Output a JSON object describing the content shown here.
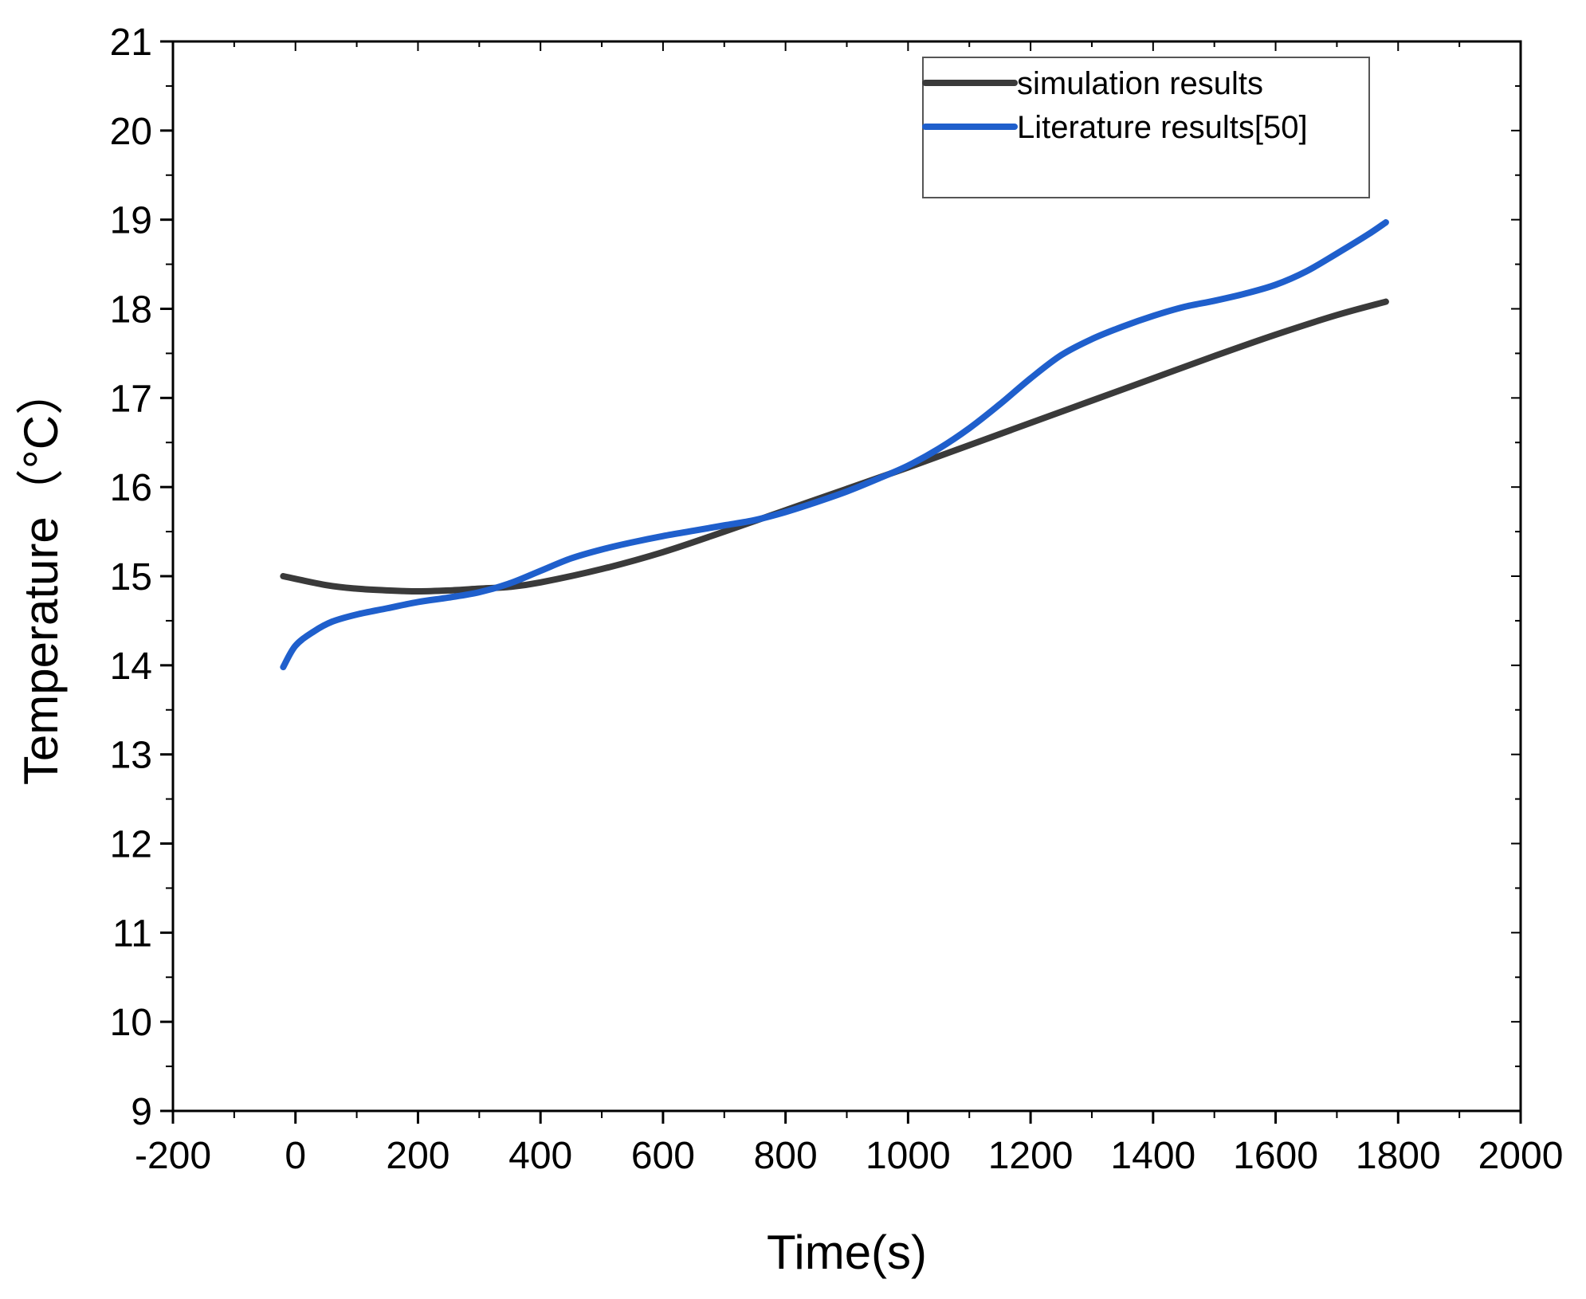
{
  "chart_data": {
    "type": "line",
    "title": "",
    "xlabel": "Time(s)",
    "ylabel": "Temperature（°C）",
    "xlim": [
      -200,
      2000
    ],
    "ylim": [
      9,
      21
    ],
    "xticks": [
      -200,
      0,
      200,
      400,
      600,
      800,
      1000,
      1200,
      1400,
      1600,
      1800,
      2000
    ],
    "yticks": [
      9,
      10,
      11,
      12,
      13,
      14,
      15,
      16,
      17,
      18,
      19,
      20,
      21
    ],
    "xtick_labels": [
      "-200",
      "0",
      "200",
      "400",
      "600",
      "800",
      "1000",
      "1200",
      "1400",
      "1600",
      "1800",
      "2000"
    ],
    "ytick_labels": [
      "9",
      "10",
      "11",
      "12",
      "13",
      "14",
      "15",
      "16",
      "17",
      "18",
      "19",
      "20",
      "21"
    ],
    "grid": false,
    "legend_position": "top-right",
    "series": [
      {
        "name": "simulation results",
        "color": "#3a3a3a",
        "x": [
          -20,
          50,
          100,
          150,
          200,
          250,
          300,
          350,
          400,
          500,
          600,
          700,
          800,
          900,
          1000,
          1100,
          1200,
          1300,
          1400,
          1500,
          1600,
          1700,
          1780
        ],
        "y": [
          15.0,
          14.9,
          14.86,
          14.84,
          14.83,
          14.84,
          14.86,
          14.88,
          14.93,
          15.08,
          15.27,
          15.5,
          15.74,
          15.98,
          16.22,
          16.47,
          16.72,
          16.97,
          17.22,
          17.47,
          17.71,
          17.93,
          18.08
        ]
      },
      {
        "name": "Literature results[50]",
        "color": "#1f5fcc",
        "x": [
          -20,
          0,
          30,
          60,
          100,
          150,
          200,
          250,
          300,
          350,
          400,
          450,
          500,
          550,
          600,
          650,
          700,
          750,
          800,
          850,
          900,
          950,
          1000,
          1050,
          1100,
          1150,
          1200,
          1250,
          1300,
          1350,
          1400,
          1450,
          1500,
          1550,
          1600,
          1650,
          1700,
          1750,
          1780
        ],
        "y": [
          13.98,
          14.22,
          14.38,
          14.49,
          14.57,
          14.64,
          14.71,
          14.76,
          14.82,
          14.92,
          15.06,
          15.2,
          15.3,
          15.38,
          15.45,
          15.51,
          15.57,
          15.63,
          15.72,
          15.83,
          15.95,
          16.09,
          16.24,
          16.43,
          16.66,
          16.93,
          17.22,
          17.48,
          17.66,
          17.8,
          17.92,
          18.02,
          18.09,
          18.17,
          18.27,
          18.42,
          18.62,
          18.83,
          18.97
        ]
      }
    ]
  }
}
